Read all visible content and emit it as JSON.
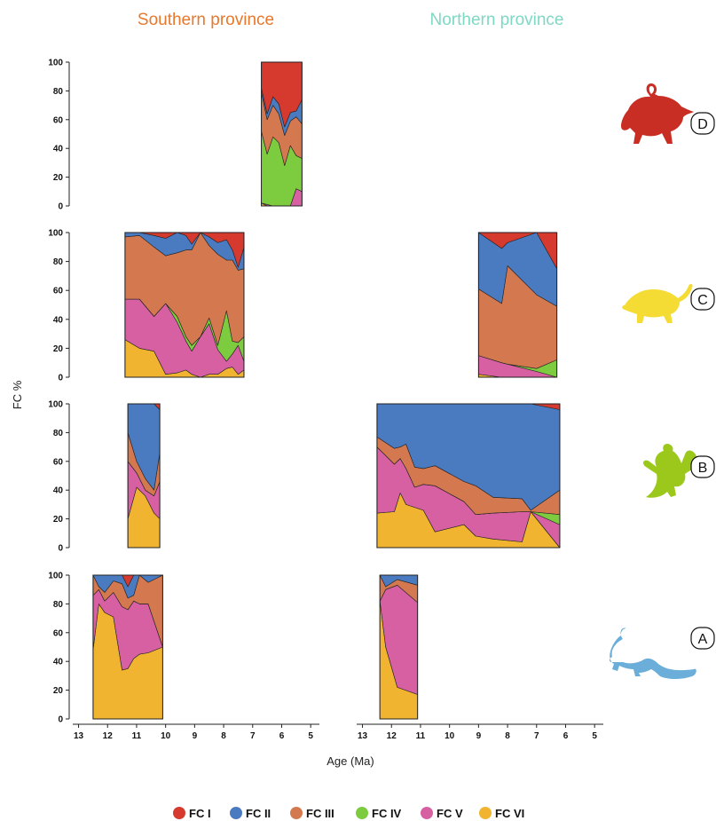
{
  "columns": [
    {
      "title": "Southern province",
      "color": "#e8782e"
    },
    {
      "title": "Northern province",
      "color": "#7fd8c4"
    }
  ],
  "ylabel": "FC %",
  "xlabel": "Age (Ma)",
  "yticks": [
    0,
    20,
    40,
    60,
    80,
    100
  ],
  "xticks": [
    13,
    12,
    11,
    10,
    9,
    8,
    7,
    6,
    5
  ],
  "xlim": [
    13.2,
    4.7
  ],
  "ylim": [
    0,
    100
  ],
  "groups": [
    {
      "badge": "D",
      "icon": "red-rodent-icon",
      "color": "#c92e24"
    },
    {
      "badge": "C",
      "icon": "yellow-rodent-icon",
      "color": "#f5dc34"
    },
    {
      "badge": "B",
      "icon": "green-squirrel-icon",
      "color": "#9cc81c"
    },
    {
      "badge": "A",
      "icon": "blue-rodent-icon",
      "color": "#6aaed9"
    }
  ],
  "legend": [
    {
      "label": "FC I",
      "color": "#d63a2e"
    },
    {
      "label": "FC II",
      "color": "#4a7ac0"
    },
    {
      "label": "FC III",
      "color": "#d4784f"
    },
    {
      "label": "FC IV",
      "color": "#7dcc3f"
    },
    {
      "label": "FC V",
      "color": "#d660a2"
    },
    {
      "label": "FC VI",
      "color": "#f0b431"
    }
  ],
  "chart_data": [
    {
      "type": "area",
      "group": "D",
      "province": "Southern province",
      "x": [
        6.7,
        6.5,
        6.3,
        6.1,
        5.9,
        5.7,
        5.5,
        5.3
      ],
      "series": [
        {
          "name": "FC I",
          "values": [
            18,
            36,
            24,
            29,
            45,
            35,
            34,
            26
          ]
        },
        {
          "name": "FC II",
          "values": [
            3,
            4,
            6,
            7,
            6,
            6,
            4,
            17
          ]
        },
        {
          "name": "FC III",
          "values": [
            27,
            24,
            22,
            20,
            21,
            17,
            27,
            24
          ]
        },
        {
          "name": "FC IV",
          "values": [
            50,
            35,
            48,
            44,
            28,
            42,
            23,
            23
          ]
        },
        {
          "name": "FC V",
          "values": [
            0,
            1,
            0,
            0,
            0,
            0,
            12,
            10
          ]
        },
        {
          "name": "FC VI",
          "values": [
            2,
            0,
            0,
            0,
            0,
            0,
            0,
            0
          ]
        }
      ]
    },
    {
      "type": "area",
      "group": "C",
      "province": "Southern province",
      "x": [
        11.4,
        10.9,
        10.4,
        10.0,
        9.6,
        9.3,
        9.1,
        8.8,
        8.5,
        8.2,
        7.9,
        7.7,
        7.5,
        7.3
      ],
      "series": [
        {
          "name": "FC I",
          "values": [
            0,
            0,
            2,
            4,
            0,
            2,
            8,
            0,
            3,
            7,
            5,
            12,
            24,
            10
          ]
        },
        {
          "name": "FC II",
          "values": [
            3,
            2,
            8,
            12,
            14,
            10,
            4,
            0,
            6,
            8,
            14,
            7,
            2,
            15
          ]
        },
        {
          "name": "FC III",
          "values": [
            43,
            44,
            48,
            33,
            44,
            60,
            66,
            72,
            50,
            63,
            35,
            56,
            50,
            47
          ]
        },
        {
          "name": "FC IV",
          "values": [
            0,
            0,
            0,
            0,
            4,
            3,
            4,
            0,
            4,
            3,
            35,
            9,
            2,
            17
          ]
        },
        {
          "name": "FC V",
          "values": [
            28,
            34,
            24,
            49,
            35,
            20,
            16,
            28,
            35,
            17,
            5,
            9,
            20,
            6
          ]
        },
        {
          "name": "FC VI",
          "values": [
            26,
            20,
            18,
            2,
            3,
            5,
            2,
            0,
            2,
            2,
            6,
            7,
            2,
            5
          ]
        }
      ]
    },
    {
      "type": "area",
      "group": "C",
      "province": "Northern province",
      "x": [
        9.0,
        8.2,
        8.0,
        7.0,
        6.3
      ],
      "series": [
        {
          "name": "FC I",
          "values": [
            0,
            11,
            7,
            0,
            25
          ]
        },
        {
          "name": "FC II",
          "values": [
            39,
            38,
            16,
            43,
            26
          ]
        },
        {
          "name": "FC III",
          "values": [
            46,
            41,
            68,
            51,
            37
          ]
        },
        {
          "name": "FC IV",
          "values": [
            0,
            0,
            0,
            2,
            12
          ]
        },
        {
          "name": "FC V",
          "values": [
            13,
            10,
            9,
            4,
            0
          ]
        },
        {
          "name": "FC VI",
          "values": [
            2,
            0,
            0,
            0,
            0
          ]
        }
      ]
    },
    {
      "type": "area",
      "group": "B",
      "province": "Southern province",
      "x": [
        11.3,
        11.0,
        10.7,
        10.4,
        10.2
      ],
      "series": [
        {
          "name": "FC I",
          "values": [
            0,
            0,
            0,
            0,
            4
          ]
        },
        {
          "name": "FC II",
          "values": [
            20,
            40,
            52,
            60,
            30
          ]
        },
        {
          "name": "FC III",
          "values": [
            20,
            8,
            8,
            4,
            20
          ]
        },
        {
          "name": "FC IV",
          "values": [
            0,
            0,
            0,
            0,
            0
          ]
        },
        {
          "name": "FC V",
          "values": [
            40,
            10,
            4,
            12,
            26
          ]
        },
        {
          "name": "FC VI",
          "values": [
            20,
            42,
            36,
            24,
            20
          ]
        }
      ]
    },
    {
      "type": "area",
      "group": "B",
      "province": "Northern province",
      "x": [
        12.5,
        11.9,
        11.7,
        11.5,
        11.2,
        10.9,
        10.5,
        9.5,
        9.1,
        8.5,
        7.5,
        7.2,
        6.2
      ],
      "series": [
        {
          "name": "FC I",
          "values": [
            0,
            0,
            0,
            0,
            0,
            0,
            0,
            0,
            0,
            0,
            0,
            0,
            4
          ]
        },
        {
          "name": "FC II",
          "values": [
            23,
            31,
            30,
            28,
            44,
            45,
            43,
            54,
            57,
            65,
            66,
            74,
            56
          ]
        },
        {
          "name": "FC III",
          "values": [
            7,
            11,
            8,
            17,
            14,
            11,
            14,
            14,
            20,
            11,
            9,
            1,
            17
          ]
        },
        {
          "name": "FC IV",
          "values": [
            0,
            0,
            0,
            0,
            0,
            0,
            0,
            0,
            0,
            0,
            0,
            0,
            7
          ]
        },
        {
          "name": "FC V",
          "values": [
            46,
            33,
            24,
            25,
            14,
            18,
            32,
            16,
            15,
            18,
            21,
            0,
            16
          ]
        },
        {
          "name": "FC VI",
          "values": [
            24,
            25,
            38,
            30,
            28,
            26,
            11,
            16,
            8,
            6,
            4,
            25,
            0
          ]
        }
      ]
    },
    {
      "type": "area",
      "group": "A",
      "province": "Southern province",
      "x": [
        12.5,
        12.3,
        12.1,
        11.8,
        11.5,
        11.3,
        11.1,
        10.9,
        10.6,
        10.1
      ],
      "series": [
        {
          "name": "FC I",
          "values": [
            0,
            0,
            0,
            0,
            0,
            8,
            0,
            0,
            0,
            0
          ]
        },
        {
          "name": "FC II",
          "values": [
            0,
            8,
            12,
            4,
            6,
            8,
            14,
            0,
            5,
            0
          ]
        },
        {
          "name": "FC III",
          "values": [
            14,
            2,
            6,
            8,
            16,
            8,
            4,
            20,
            15,
            50
          ]
        },
        {
          "name": "FC IV",
          "values": [
            0,
            0,
            0,
            0,
            0,
            0,
            0,
            0,
            0,
            0
          ]
        },
        {
          "name": "FC V",
          "values": [
            38,
            10,
            8,
            17,
            44,
            41,
            40,
            35,
            34,
            0
          ]
        },
        {
          "name": "FC VI",
          "values": [
            48,
            80,
            74,
            71,
            34,
            35,
            42,
            45,
            46,
            50
          ]
        }
      ]
    },
    {
      "type": "area",
      "group": "A",
      "province": "Northern province",
      "x": [
        12.4,
        12.2,
        11.8,
        11.1
      ],
      "series": [
        {
          "name": "FC I",
          "values": [
            0,
            0,
            0,
            0
          ]
        },
        {
          "name": "FC II",
          "values": [
            0,
            8,
            3,
            7
          ]
        },
        {
          "name": "FC III",
          "values": [
            18,
            2,
            4,
            12
          ]
        },
        {
          "name": "FC IV",
          "values": [
            0,
            0,
            0,
            0
          ]
        },
        {
          "name": "FC V",
          "values": [
            0,
            40,
            71,
            64
          ]
        },
        {
          "name": "FC VI",
          "values": [
            82,
            50,
            22,
            17
          ]
        }
      ]
    }
  ]
}
